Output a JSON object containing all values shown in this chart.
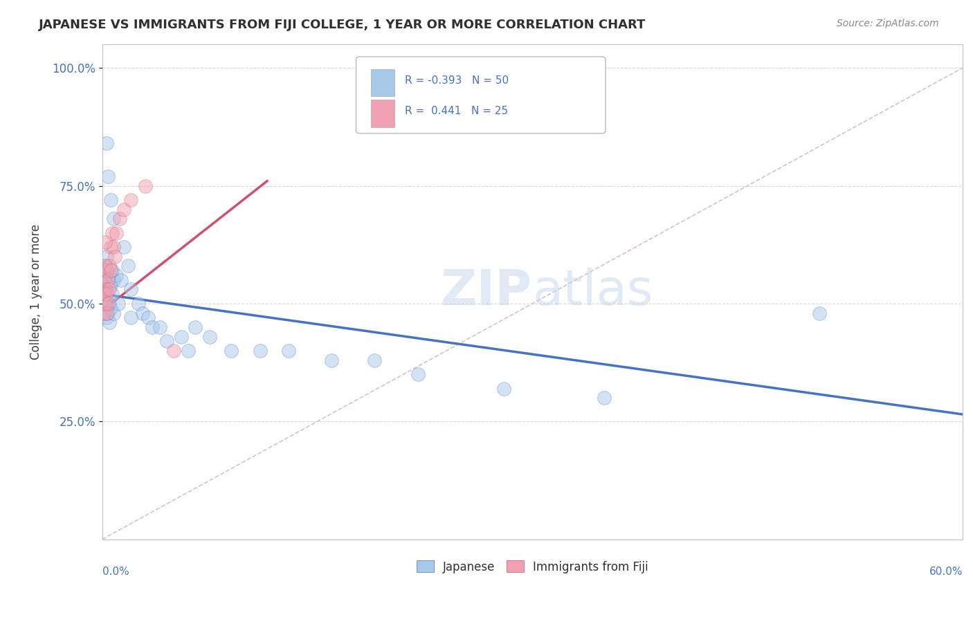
{
  "title": "JAPANESE VS IMMIGRANTS FROM FIJI COLLEGE, 1 YEAR OR MORE CORRELATION CHART",
  "source": "Source: ZipAtlas.com",
  "ylabel": "College, 1 year or more",
  "xlim": [
    0.0,
    0.6
  ],
  "ylim": [
    0.0,
    1.05
  ],
  "yticks": [
    0.25,
    0.5,
    0.75,
    1.0
  ],
  "ytick_labels": [
    "25.0%",
    "50.0%",
    "75.0%",
    "100.0%"
  ],
  "color_japanese": "#a8c8e8",
  "color_fiji": "#f0a0b0",
  "color_japanese_line": "#4472c4",
  "color_fiji_line": "#d05070",
  "color_diag": "#d0b0b8",
  "background": "#ffffff",
  "grid_color": "#c8c8d0",
  "jp_line_x0": 0.0,
  "jp_line_x1": 0.6,
  "jp_line_y0": 0.52,
  "jp_line_y1": 0.265,
  "fj_line_x0": 0.0,
  "fj_line_x1": 0.115,
  "fj_line_y0": 0.485,
  "fj_line_y1": 0.76,
  "japanese_x": [
    0.001,
    0.001,
    0.002,
    0.002,
    0.002,
    0.003,
    0.003,
    0.003,
    0.003,
    0.004,
    0.004,
    0.005,
    0.005,
    0.005,
    0.006,
    0.006,
    0.007,
    0.007,
    0.008,
    0.008,
    0.01,
    0.011,
    0.013,
    0.015,
    0.018,
    0.02,
    0.025,
    0.028,
    0.032,
    0.035,
    0.04,
    0.045,
    0.055,
    0.06,
    0.065,
    0.075,
    0.09,
    0.11,
    0.13,
    0.16,
    0.19,
    0.22,
    0.28,
    0.35,
    0.5,
    0.003,
    0.004,
    0.006,
    0.008,
    0.02
  ],
  "japanese_y": [
    0.55,
    0.52,
    0.58,
    0.5,
    0.53,
    0.6,
    0.55,
    0.5,
    0.47,
    0.53,
    0.48,
    0.56,
    0.5,
    0.46,
    0.54,
    0.49,
    0.57,
    0.52,
    0.55,
    0.48,
    0.56,
    0.5,
    0.55,
    0.62,
    0.58,
    0.53,
    0.5,
    0.48,
    0.47,
    0.45,
    0.45,
    0.42,
    0.43,
    0.4,
    0.45,
    0.43,
    0.4,
    0.4,
    0.4,
    0.38,
    0.38,
    0.35,
    0.32,
    0.3,
    0.48,
    0.84,
    0.77,
    0.72,
    0.68,
    0.47
  ],
  "fiji_x": [
    0.001,
    0.001,
    0.001,
    0.002,
    0.002,
    0.002,
    0.003,
    0.003,
    0.003,
    0.004,
    0.004,
    0.005,
    0.005,
    0.006,
    0.006,
    0.007,
    0.008,
    0.009,
    0.01,
    0.012,
    0.015,
    0.02,
    0.03,
    0.05,
    0.002
  ],
  "fiji_y": [
    0.55,
    0.52,
    0.48,
    0.58,
    0.53,
    0.5,
    0.57,
    0.52,
    0.48,
    0.55,
    0.5,
    0.58,
    0.53,
    0.62,
    0.57,
    0.65,
    0.62,
    0.6,
    0.65,
    0.68,
    0.7,
    0.72,
    0.75,
    0.4,
    0.63
  ]
}
